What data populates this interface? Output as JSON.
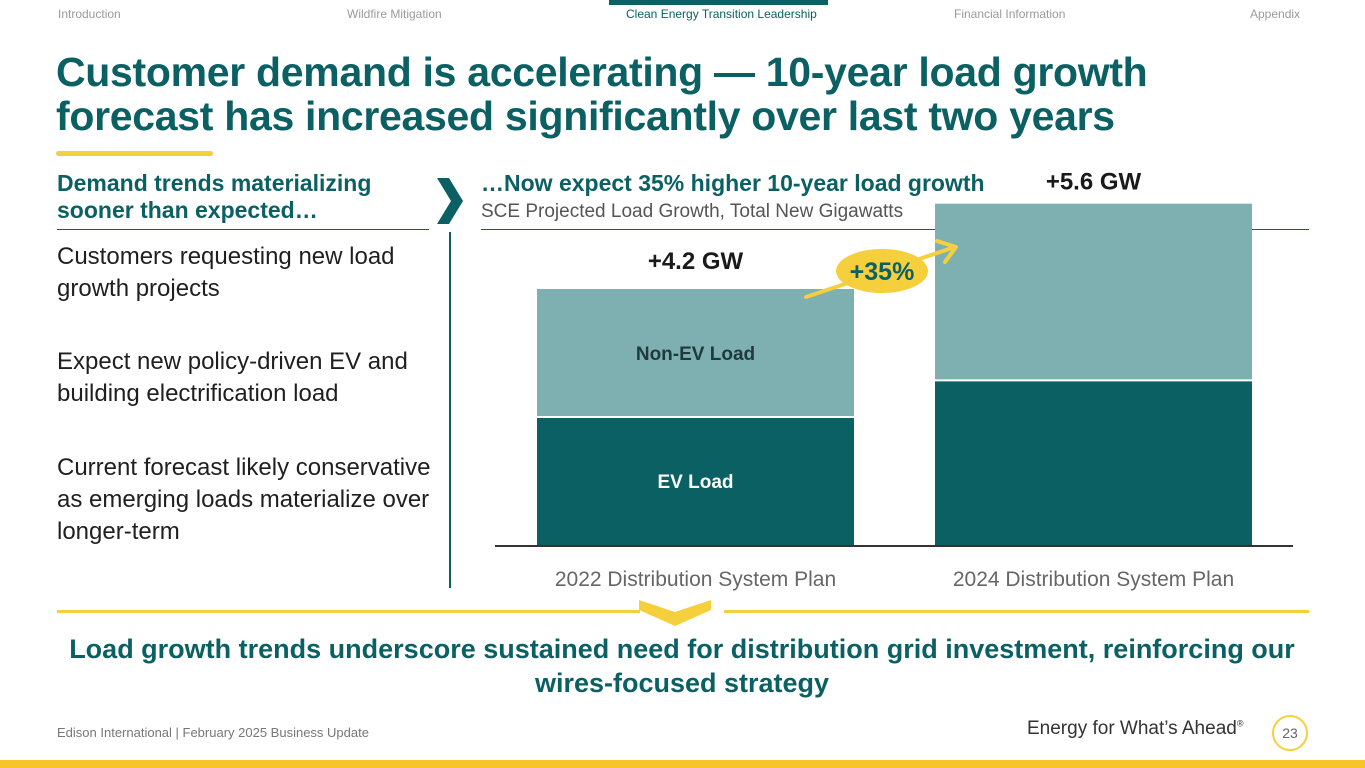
{
  "nav": {
    "items": [
      "Introduction",
      "Wildfire Mitigation",
      "Clean Energy Transition Leadership",
      "Financial Information",
      "Appendix"
    ],
    "active_index": 2
  },
  "title": "Customer demand is accelerating — 10-year load growth forecast has increased significantly over last two years",
  "left": {
    "heading": "Demand trends materializing sooner than expected…",
    "bullets": [
      "Customers requesting new load growth projects",
      "Expect new policy-driven EV and building electrification load",
      "Current forecast likely conservative as emerging loads materialize over longer-term"
    ]
  },
  "right": {
    "heading": "…Now expect 35% higher 10-year load growth",
    "subheading": "SCE Projected Load Growth, Total New Gigawatts"
  },
  "chart_data": {
    "type": "bar",
    "stacked": true,
    "categories": [
      "2022 Distribution System Plan",
      "2024 Distribution System Plan"
    ],
    "series": [
      {
        "name": "EV Load",
        "values": [
          2.1,
          2.7
        ],
        "color": "#0b6064"
      },
      {
        "name": "Non-EV Load",
        "values": [
          2.1,
          2.9
        ],
        "color": "#7fb0b1"
      }
    ],
    "totals": [
      4.2,
      5.6
    ],
    "total_labels": [
      "+4.2 GW",
      "+5.6 GW"
    ],
    "growth_callout": "+35%",
    "ylim": [
      0,
      6.0
    ],
    "grid": false,
    "legend": "none (series labels inside first bar)"
  },
  "takeaway": "Load growth trends underscore sustained need for distribution grid investment, reinforcing our wires-focused strategy",
  "footer": {
    "left": "Edison International |  February 2025 Business Update",
    "tagline": "Energy for What’s Ahead",
    "tagline_mark": "®",
    "page": "23"
  },
  "colors": {
    "brand_teal": "#0b6064",
    "light_teal": "#7fb0b1",
    "accent_yellow": "#f6cf3c"
  }
}
